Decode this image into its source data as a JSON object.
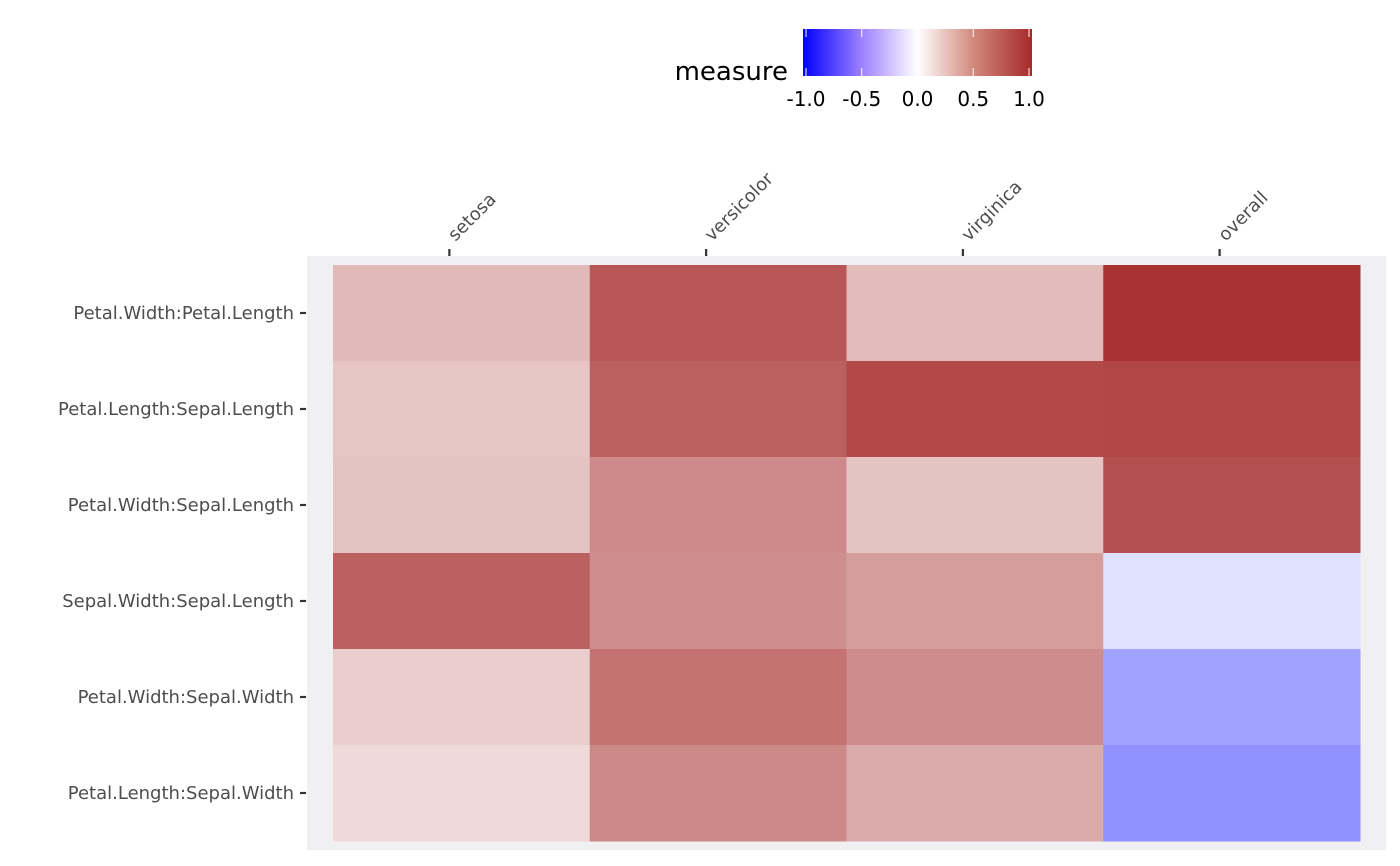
{
  "chart_data": {
    "type": "heatmap",
    "x_categories": [
      "setosa",
      "versicolor",
      "virginica",
      "overall"
    ],
    "y_categories": [
      "Petal.Width:Petal.Length",
      "Petal.Length:Sepal.Length",
      "Petal.Width:Sepal.Length",
      "Sepal.Width:Sepal.Length",
      "Petal.Width:Sepal.Width",
      "Petal.Length:Sepal.Width"
    ],
    "values": [
      [
        0.33,
        0.79,
        0.32,
        0.96
      ],
      [
        0.27,
        0.75,
        0.86,
        0.87
      ],
      [
        0.28,
        0.55,
        0.28,
        0.82
      ],
      [
        0.74,
        0.53,
        0.46,
        -0.12
      ],
      [
        0.23,
        0.66,
        0.54,
        -0.37
      ],
      [
        0.18,
        0.56,
        0.4,
        -0.43
      ]
    ],
    "legend": {
      "title": "measure",
      "ticks": [
        "-1.0",
        "-0.5",
        "0.0",
        "0.5",
        "1.0"
      ],
      "range": [
        -1,
        1
      ],
      "position": "top"
    },
    "colors": {
      "low": "#0000ff",
      "mid": "#ffffff",
      "high": "#a52a2a",
      "panel_bg": "#f0f0f2"
    },
    "x_axis_position": "top",
    "grid": false
  }
}
